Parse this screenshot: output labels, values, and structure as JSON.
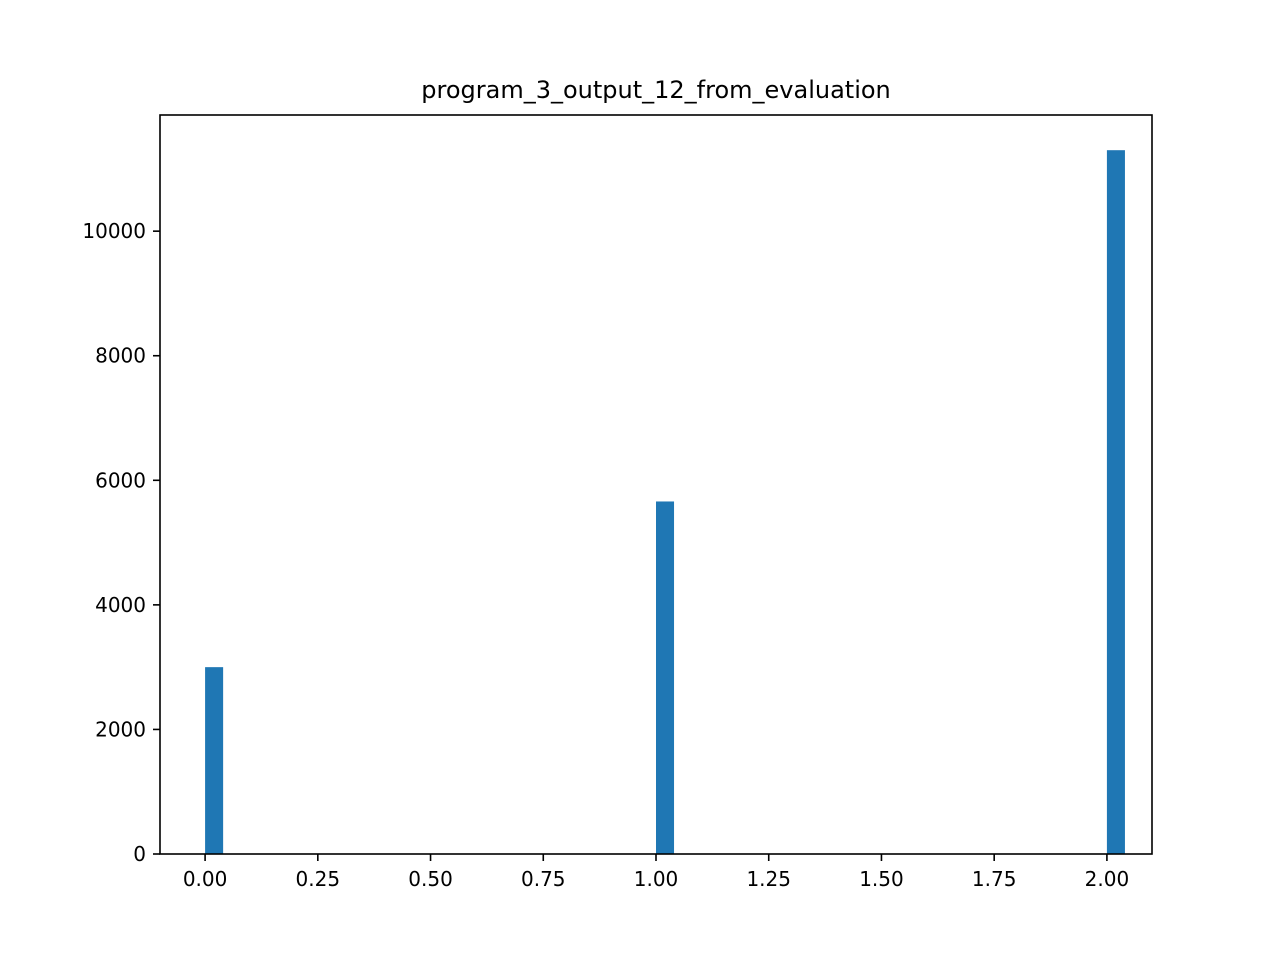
{
  "chart_data": {
    "type": "bar",
    "title": "program_3_output_12_from_evaluation",
    "xlabel": "",
    "ylabel": "",
    "x": [
      0.0,
      1.0,
      2.0
    ],
    "values": [
      3000,
      5660,
      11300
    ],
    "bin_width": 0.04,
    "xlim": [
      -0.1,
      2.1
    ],
    "ylim": [
      0,
      11865
    ],
    "xticks": [
      0.0,
      0.25,
      0.5,
      0.75,
      1.0,
      1.25,
      1.5,
      1.75,
      2.0
    ],
    "xtick_labels": [
      "0.00",
      "0.25",
      "0.50",
      "0.75",
      "1.00",
      "1.25",
      "1.50",
      "1.75",
      "2.00"
    ],
    "yticks": [
      0,
      2000,
      4000,
      6000,
      8000,
      10000
    ],
    "ytick_labels": [
      "0",
      "2000",
      "4000",
      "6000",
      "8000",
      "10000"
    ],
    "bar_color": "#1f77b4",
    "grid": false,
    "legend": "none"
  }
}
